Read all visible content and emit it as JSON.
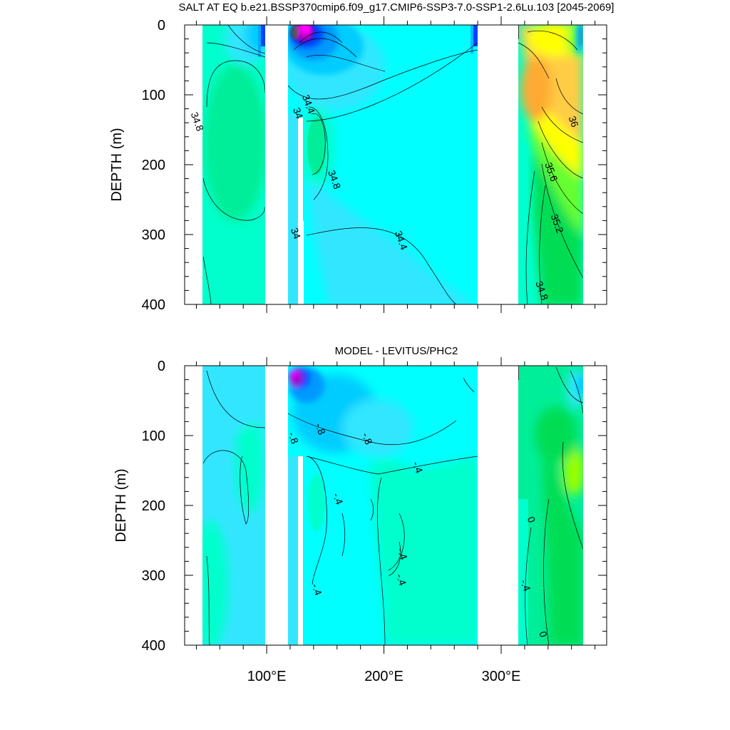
{
  "figure": {
    "title": "SALT AT EQ b.e21.BSSP370cmip6.f09_g17.CMIP6-SSP3-7.0-SSP1-2.6Lu.103 [2045-2069]",
    "panel2_title": "MODEL - LEVITUS/PHC2",
    "colors": {
      "teal": "#00ffcc",
      "cyan": "#00ffff",
      "lightblue": "#33e6ff",
      "skyblue": "#00ccff",
      "blue": "#0099ff",
      "darkblue": "#0044ff",
      "navy": "#0000cc",
      "purple": "#9900cc",
      "magenta": "#cc00cc",
      "pink": "#ff00ff",
      "gray": "#555555",
      "seagreen": "#00ee99",
      "green": "#00dd55",
      "brightgreen": "#00ff00",
      "lime": "#66ff33",
      "yellowgreen": "#99ff00",
      "yellow": "#ffff00",
      "gold": "#ffd633",
      "orange": "#ffaa33",
      "lightorange": "#ffcc44"
    }
  },
  "chart_data": [
    {
      "type": "heatmap",
      "title": "SALT AT EQ b.e21.BSSP370cmip6.f09_g17.CMIP6-SSP3-7.0-SSP1-2.6Lu.103 [2045-2069]",
      "xlabel": "",
      "ylabel": "DEPTH (m)",
      "xlim": [
        30,
        390
      ],
      "ylim": [
        400,
        0
      ],
      "x_ticks": [
        100,
        200,
        300
      ],
      "x_tick_labels": [
        "100°E",
        "200°E",
        "300°E"
      ],
      "y_ticks": [
        0,
        100,
        200,
        300,
        400
      ],
      "y_tick_labels": [
        "0",
        "100",
        "200",
        "300",
        "400"
      ],
      "land_columns": [
        [
          0,
          45
        ],
        [
          98,
          118
        ],
        [
          125,
          132
        ],
        [
          279,
          314
        ],
        [
          370,
          400
        ]
      ],
      "contour_labels": [
        {
          "text": "34.8",
          "x": 38,
          "y": 140
        },
        {
          "text": "34",
          "x": 124,
          "y": 128
        },
        {
          "text": "34.4",
          "x": 133,
          "y": 115
        },
        {
          "text": "34.8",
          "x": 155,
          "y": 223
        },
        {
          "text": "34",
          "x": 122,
          "y": 300
        },
        {
          "text": "34.4",
          "x": 212,
          "y": 310
        },
        {
          "text": "36",
          "x": 359,
          "y": 140
        },
        {
          "text": "35.6",
          "x": 340,
          "y": 212
        },
        {
          "text": "35.2",
          "x": 345,
          "y": 286
        },
        {
          "text": "34.8",
          "x": 332,
          "y": 382
        }
      ]
    },
    {
      "type": "heatmap",
      "title": "MODEL - LEVITUS/PHC2",
      "xlabel": "",
      "ylabel": "DEPTH (m)",
      "xlim": [
        30,
        390
      ],
      "ylim": [
        400,
        0
      ],
      "x_ticks": [
        100,
        200,
        300
      ],
      "x_tick_labels": [
        "100°E",
        "200°E",
        "300°E"
      ],
      "y_ticks": [
        0,
        100,
        200,
        300,
        400
      ],
      "y_tick_labels": [
        "0",
        "100",
        "200",
        "300",
        "400"
      ],
      "land_columns": [
        [
          0,
          45
        ],
        [
          98,
          118
        ],
        [
          125,
          132
        ],
        [
          279,
          314
        ],
        [
          370,
          400
        ]
      ],
      "contour_labels": [
        {
          "text": "-.8",
          "x": 120,
          "y": 105
        },
        {
          "text": "-.8",
          "x": 143,
          "y": 92
        },
        {
          "text": "-.8",
          "x": 183,
          "y": 106
        },
        {
          "text": "-.4",
          "x": 158,
          "y": 192
        },
        {
          "text": "-.4",
          "x": 226,
          "y": 147
        },
        {
          "text": "-.4",
          "x": 213,
          "y": 271
        },
        {
          "text": "-.4",
          "x": 212,
          "y": 308
        },
        {
          "text": "-.4",
          "x": 140,
          "y": 322
        },
        {
          "text": "0",
          "x": 323,
          "y": 222
        },
        {
          "text": "-.4",
          "x": 318,
          "y": 316
        },
        {
          "text": "0",
          "x": 333,
          "y": 386
        }
      ]
    }
  ]
}
